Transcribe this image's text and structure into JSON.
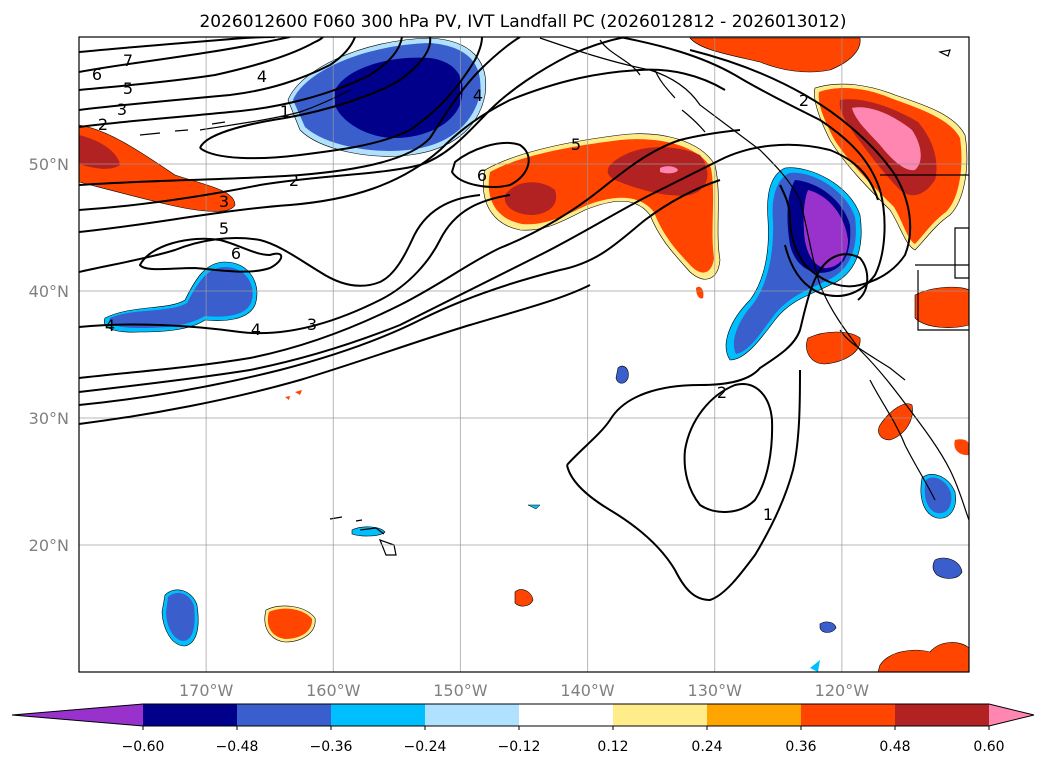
{
  "title": "2026012600 F060 300 hPa PV, IVT Landfall PC (2026012812 - 2026013012)",
  "map": {
    "projection": "PlateCarree",
    "lon_range": [
      -180,
      -110
    ],
    "lat_range": [
      10,
      60
    ],
    "lon_ticks": [
      {
        "lon": -170,
        "label": "170°W"
      },
      {
        "lon": -160,
        "label": "160°W"
      },
      {
        "lon": -150,
        "label": "150°W"
      },
      {
        "lon": -140,
        "label": "140°W"
      },
      {
        "lon": -130,
        "label": "130°W"
      },
      {
        "lon": -120,
        "label": "120°W"
      }
    ],
    "lat_ticks": [
      {
        "lat": 50,
        "label": "50°N"
      },
      {
        "lat": 40,
        "label": "40°N"
      },
      {
        "lat": 30,
        "label": "30°N"
      },
      {
        "lat": 20,
        "label": "20°N"
      }
    ],
    "gridlines": true
  },
  "colorbar": {
    "levels": [
      "−0.60",
      "−0.48",
      "−0.36",
      "−0.24",
      "−0.12",
      "0.12",
      "0.24",
      "0.36",
      "0.48",
      "0.60"
    ],
    "colors": [
      "#9932cc",
      "#00008b",
      "#3a5fcd",
      "#00bfff",
      "#b0e2ff",
      "#ffffff",
      "#ffec8b",
      "#ffa500",
      "#ff4500",
      "#b22222",
      "#ff86b0"
    ],
    "extend": "both"
  },
  "contour_labels": [
    "7",
    "6",
    "5",
    "4",
    "3",
    "2",
    "1",
    "4",
    "2",
    "3",
    "5",
    "6",
    "6",
    "4",
    "4",
    "3",
    "5",
    "2",
    "2",
    "1"
  ],
  "colors": {
    "purple": "#9932cc",
    "navy": "#00008b",
    "blue": "#3a5fcd",
    "cyan": "#00bfff",
    "lightblue": "#b0e2ff",
    "yellow": "#ffec8b",
    "orange": "#ffa500",
    "orangered": "#ff4500",
    "firebrick": "#b22222",
    "pink": "#ff86b0"
  }
}
